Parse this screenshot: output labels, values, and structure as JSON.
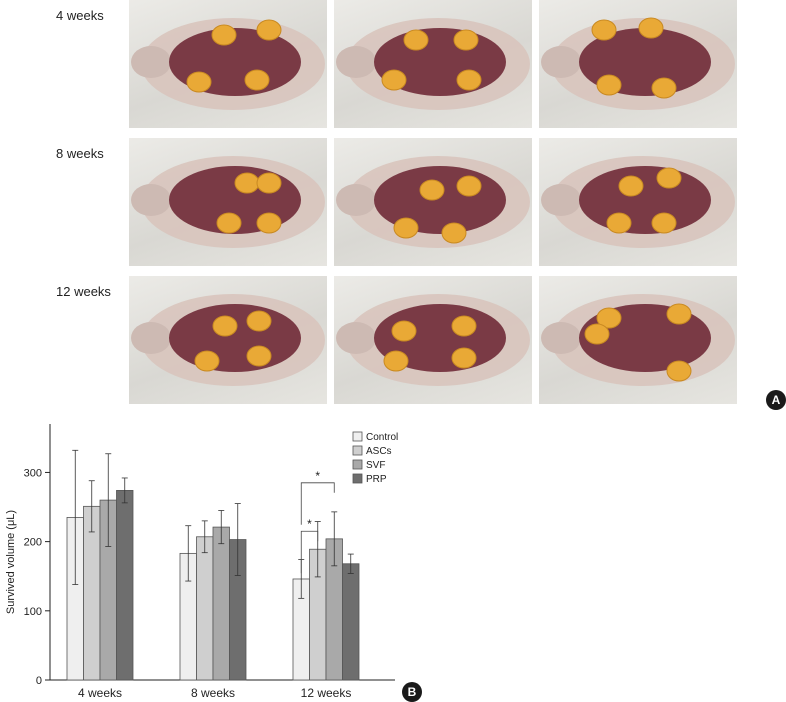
{
  "panel_a": {
    "badge": "A",
    "rows": [
      {
        "label": "4 weeks"
      },
      {
        "label": "8 weeks"
      },
      {
        "label": "12 weeks"
      }
    ]
  },
  "panel_b": {
    "badge": "B"
  },
  "colors": {
    "control": "#efefef",
    "ascs": "#cfcfcf",
    "svf": "#a9a9a9",
    "prp": "#6e6e6e",
    "tissue": "#7a3a45",
    "graft": "#e9a936"
  },
  "chart_data": {
    "type": "bar",
    "categories": [
      "4 weeks",
      "8 weeks",
      "12 weeks"
    ],
    "ylabel": "Survived volume (μL)",
    "xlabel": "",
    "ylim": [
      0,
      370
    ],
    "yticks": [
      0,
      100,
      200,
      300
    ],
    "legend_position": "top-right",
    "series": [
      {
        "name": "Control",
        "values": [
          235,
          183,
          146
        ],
        "errors": [
          97,
          40,
          28
        ]
      },
      {
        "name": "ASCs",
        "values": [
          251,
          207,
          189
        ],
        "errors": [
          37,
          23,
          40
        ]
      },
      {
        "name": "SVF",
        "values": [
          260,
          221,
          204
        ],
        "errors": [
          67,
          24,
          39
        ]
      },
      {
        "name": "PRP",
        "values": [
          274,
          203,
          168
        ],
        "errors": [
          18,
          52,
          14
        ]
      }
    ],
    "annotations": [
      {
        "text": "*",
        "category": "12 weeks",
        "between": [
          "Control",
          "ASCs"
        ],
        "level": 215
      },
      {
        "text": "*",
        "category": "12 weeks",
        "between": [
          "Control",
          "SVF"
        ],
        "level": 285
      }
    ]
  }
}
